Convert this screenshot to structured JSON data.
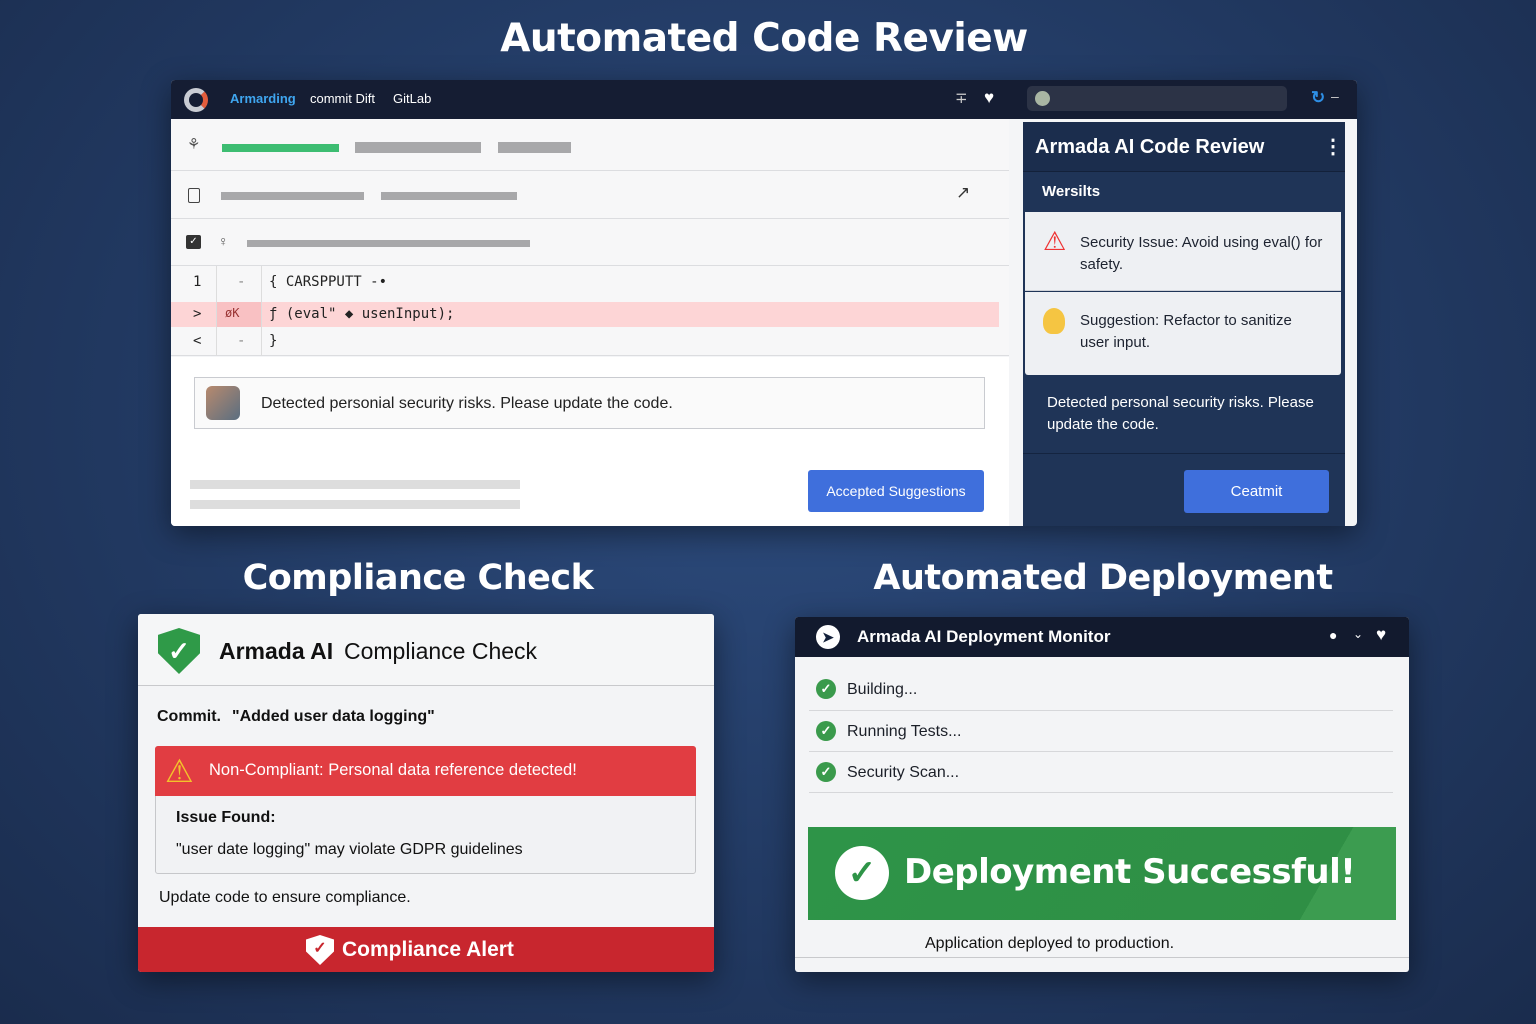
{
  "sections": {
    "code_review_title": "Automated Code Review",
    "compliance_title": "Compliance Check",
    "deployment_title": "Automated Deployment"
  },
  "code_review": {
    "nav": {
      "brand": "Armarding",
      "items": [
        "commit Dift",
        "GitLab"
      ]
    },
    "code_lines": [
      {
        "num": "1",
        "marker": "-",
        "text": "{  CARSPPUTT -•"
      },
      {
        "num": ">",
        "marker": "øK",
        "text": "ƒ (eval\" ◆ usenInput);"
      },
      {
        "num": "<",
        "marker": "-",
        "text": "}"
      }
    ],
    "comment": "Detected personial security risks. Please update the code.",
    "accept_button": "Accepted Suggestions",
    "panel": {
      "title": "Armada AI Code Review",
      "subheading": "Wersilts",
      "issue": "Security Issue: Avoid using eval() for safety.",
      "suggestion": "Suggestion: Refactor to sanitize user input.",
      "summary": "Detected personal security risks. Please update the code.",
      "commit_button": "Ceatmit"
    }
  },
  "compliance": {
    "brand": "Armada AI",
    "title": "Compliance Check",
    "commit_label": "Commit.",
    "commit_message": "\"Added user data logging\"",
    "alert": "Non-Compliant: Personal data reference detected!",
    "issue_label": "Issue Found:",
    "issue_text": "\"user date logging\" may violate GDPR guidelines",
    "advice": "Update code to ensure compliance.",
    "footer": "Compliance Alert"
  },
  "deployment": {
    "title": "Armada AI Deployment Monitor",
    "steps": [
      "Building...",
      "Running Tests...",
      "Security Scan..."
    ],
    "success": "Deployment Successful!",
    "footer": "Application deployed to production."
  },
  "colors": {
    "accent_blue": "#3f6fdc",
    "success_green": "#2f9447",
    "danger_red": "#e0393e",
    "nav_dark": "#151d33"
  }
}
